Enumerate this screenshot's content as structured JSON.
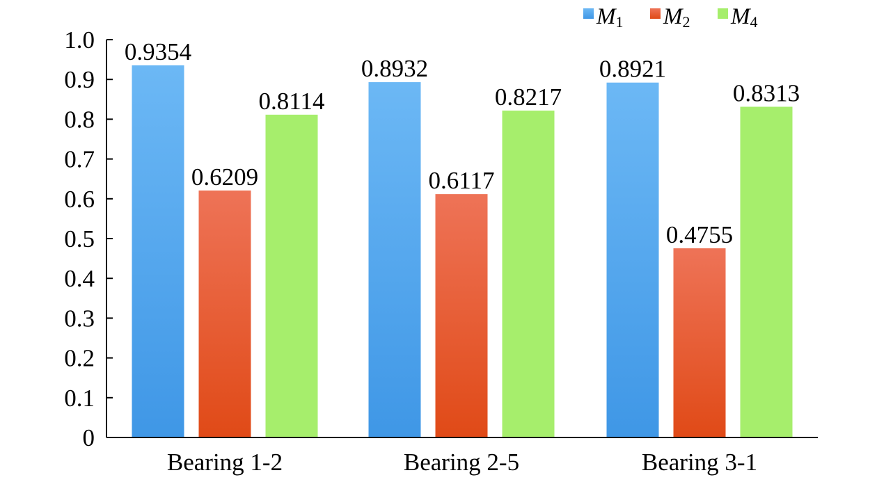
{
  "chart_data": {
    "type": "bar",
    "title": "",
    "xlabel": "",
    "ylabel": "",
    "ylim": [
      0,
      1.0
    ],
    "yticks": [
      "0",
      "0.1",
      "0.2",
      "0.3",
      "0.4",
      "0.5",
      "0.6",
      "0.7",
      "0.8",
      "0.9",
      "1.0"
    ],
    "grid": false,
    "legend_position": "top-right",
    "categories": [
      "Bearing 1-2",
      "Bearing 2-5",
      "Bearing 3-1"
    ],
    "series": [
      {
        "name": "M1",
        "legend_base": "M",
        "legend_sub": "1",
        "values": [
          0.9354,
          0.8932,
          0.8921
        ],
        "labels": [
          "0.9354",
          "0.8932",
          "0.8921"
        ],
        "color_top": "#6cb8f5",
        "color_bottom": "#3f97e6"
      },
      {
        "name": "M2",
        "legend_base": "M",
        "legend_sub": "2",
        "values": [
          0.6209,
          0.6117,
          0.4755
        ],
        "labels": [
          "0.6209",
          "0.6117",
          "0.4755"
        ],
        "color_top": "#ee7357",
        "color_bottom": "#e04a17"
      },
      {
        "name": "M4",
        "legend_base": "M",
        "legend_sub": "4",
        "values": [
          0.8114,
          0.8217,
          0.8313
        ],
        "labels": [
          "0.8114",
          "0.8217",
          "0.8313"
        ],
        "color_top": "#a6ee6c",
        "color_bottom": "#a6ee6c"
      }
    ]
  }
}
